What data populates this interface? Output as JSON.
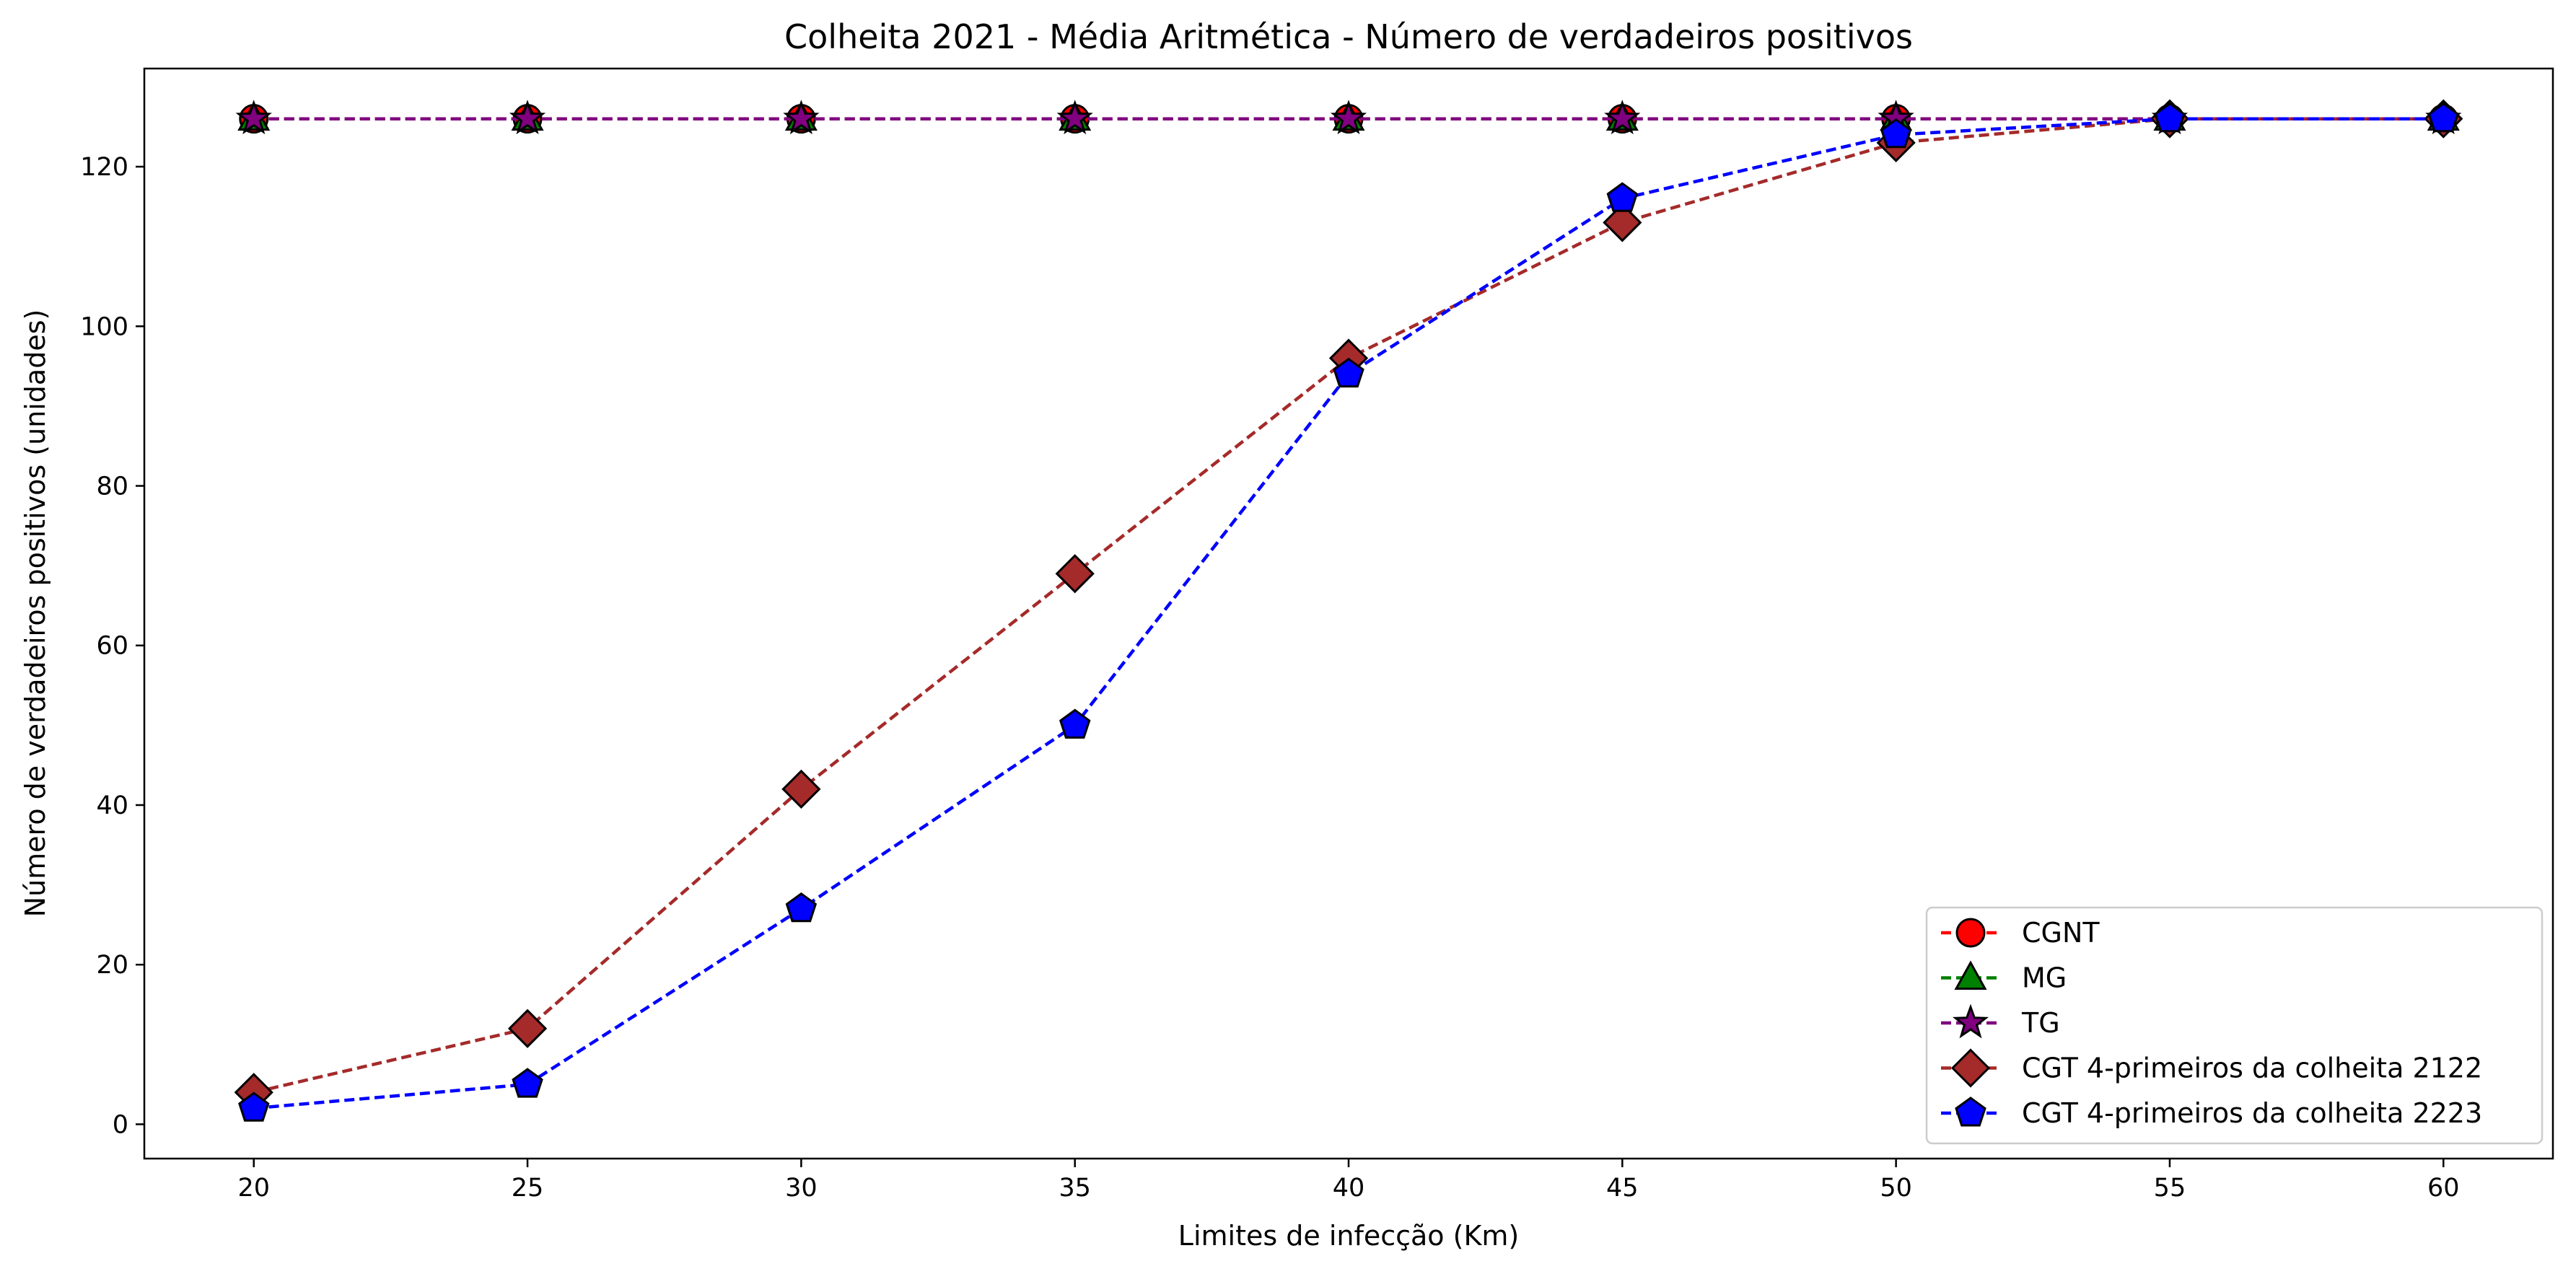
{
  "chart_data": {
    "type": "line",
    "title": "Colheita 2021 - Média Aritmética - Número de verdadeiros positivos",
    "xlabel": "Limites de infecção (Km)",
    "ylabel": "Número de verdadeiros positivos (unidades)",
    "x": [
      20,
      25,
      30,
      35,
      40,
      45,
      50,
      55,
      60
    ],
    "xlim": [
      18,
      62
    ],
    "ylim": [
      -4.3,
      132.3
    ],
    "xticks": [
      20,
      25,
      30,
      35,
      40,
      45,
      50,
      55,
      60
    ],
    "yticks": [
      0,
      20,
      40,
      60,
      80,
      100,
      120
    ],
    "grid": false,
    "legend_position": "lower-right",
    "series": [
      {
        "name": "CGNT",
        "color": "#ff0000",
        "marker": "circle",
        "values": [
          126,
          126,
          126,
          126,
          126,
          126,
          126,
          126,
          126
        ]
      },
      {
        "name": "MG",
        "color": "#008000",
        "marker": "triangle",
        "values": [
          126,
          126,
          126,
          126,
          126,
          126,
          126,
          126,
          126
        ]
      },
      {
        "name": "TG",
        "color": "#800080",
        "marker": "star",
        "values": [
          126,
          126,
          126,
          126,
          126,
          126,
          126,
          126,
          126
        ]
      },
      {
        "name": "CGT 4-primeiros da colheita 2122",
        "color": "#a52a2a",
        "marker": "diamond",
        "values": [
          4,
          12,
          42,
          69,
          96,
          113,
          123,
          126,
          126
        ]
      },
      {
        "name": "CGT 4-primeiros da colheita 2223",
        "color": "#0000ff",
        "marker": "pentagon",
        "values": [
          2,
          5,
          27,
          50,
          94,
          116,
          124,
          126,
          126
        ]
      }
    ]
  }
}
